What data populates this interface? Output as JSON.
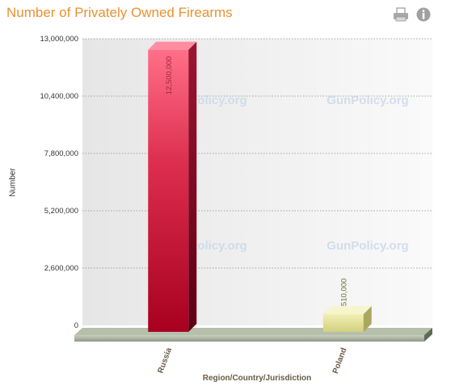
{
  "title": "Number of Privately Owned Firearms",
  "toolbar": {
    "print_icon": "printer-icon",
    "info_icon": "info-icon"
  },
  "watermark": "GunPolicy.org",
  "colors": {
    "title": "#e8912f",
    "russia_bar": "#cc1f40",
    "poland_bar": "#d9d98a",
    "floor": "#9aa58f"
  },
  "chart_data": {
    "type": "bar",
    "categories": [
      "Russia",
      "Poland"
    ],
    "values": [
      12500000,
      510000
    ],
    "data_labels": [
      "12,500,000",
      "510,000"
    ],
    "xlabel": "Region/Country/Jurisdiction",
    "ylabel": "Number",
    "ylim": [
      0,
      13000000
    ],
    "yticks": [
      "0",
      "2,600,000",
      "5,200,000",
      "7,800,000",
      "10,400,000",
      "13,000,000"
    ],
    "grid": true
  }
}
